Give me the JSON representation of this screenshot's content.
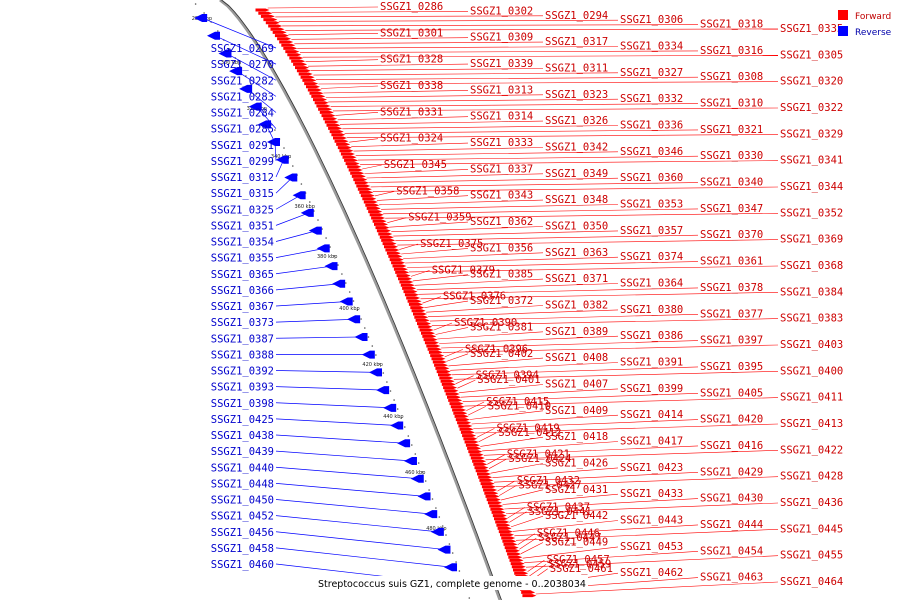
{
  "legend": {
    "items": [
      {
        "label": "Forward",
        "color": "#ff0000"
      },
      {
        "label": "Reverse",
        "color": "#0000ff"
      }
    ]
  },
  "caption": "Streptococcus suis GZ1, complete genome - 0..2038034",
  "colors": {
    "forward": "#ff0000",
    "reverse": "#0000ff",
    "backbone": "#888888"
  },
  "ticks": [
    "280 kbp",
    "300 kbp",
    "320 kbp",
    "340 kbp",
    "360 kbp",
    "380 kbp",
    "400 kbp",
    "420 kbp",
    "440 kbp",
    "460 kbp",
    "480 kbp"
  ],
  "reverse_genes": [
    "SSGZ1_0269",
    "SSGZ1_0270",
    "SSGZ1_0282",
    "SSGZ1_0283",
    "SSGZ1_0284",
    "SSGZ1_0285",
    "SSGZ1_0291",
    "SSGZ1_0299",
    "SSGZ1_0312",
    "SSGZ1_0315",
    "SSGZ1_0325",
    "SSGZ1_0351",
    "SSGZ1_0354",
    "SSGZ1_0355",
    "SSGZ1_0365",
    "SSGZ1_0366",
    "SSGZ1_0367",
    "SSGZ1_0373",
    "SSGZ1_0387",
    "SSGZ1_0388",
    "SSGZ1_0392",
    "SSGZ1_0393",
    "SSGZ1_0398",
    "SSGZ1_0425",
    "SSGZ1_0438",
    "SSGZ1_0439",
    "SSGZ1_0440",
    "SSGZ1_0448",
    "SSGZ1_0450",
    "SSGZ1_0452",
    "SSGZ1_0456",
    "SSGZ1_0458",
    "SSGZ1_0460"
  ],
  "forward_genes": [
    "SSGZ1_0286",
    "SSGZ1_0302",
    "SSGZ1_0294",
    "SSGZ1_0306",
    "SSGZ1_0318",
    "SSGZ1_0335",
    "SSGZ1_0301",
    "SSGZ1_0309",
    "SSGZ1_0317",
    "SSGZ1_0334",
    "SSGZ1_0316",
    "SSGZ1_0305",
    "SSGZ1_0328",
    "SSGZ1_0339",
    "SSGZ1_0311",
    "SSGZ1_0327",
    "SSGZ1_0308",
    "SSGZ1_0320",
    "SSGZ1_0338",
    "SSGZ1_0313",
    "SSGZ1_0323",
    "SSGZ1_0332",
    "SSGZ1_0310",
    "SSGZ1_0322",
    "SSGZ1_0331",
    "SSGZ1_0314",
    "SSGZ1_0326",
    "SSGZ1_0336",
    "SSGZ1_0321",
    "SSGZ1_0329",
    "SSGZ1_0324",
    "SSGZ1_0333",
    "SSGZ1_0342",
    "SSGZ1_0346",
    "SSGZ1_0330",
    "SSGZ1_0341",
    "SSGZ1_0345",
    "SSGZ1_0337",
    "SSGZ1_0349",
    "SSGZ1_0360",
    "SSGZ1_0340",
    "SSGZ1_0344",
    "SSGZ1_0358",
    "SSGZ1_0343",
    "SSGZ1_0348",
    "SSGZ1_0353",
    "SSGZ1_0347",
    "SSGZ1_0352",
    "SSGZ1_0359",
    "SSGZ1_0362",
    "SSGZ1_0350",
    "SSGZ1_0357",
    "SSGZ1_0370",
    "SSGZ1_0369",
    "SSGZ1_0375",
    "SSGZ1_0356",
    "SSGZ1_0363",
    "SSGZ1_0374",
    "SSGZ1_0361",
    "SSGZ1_0368",
    "SSGZ1_0379",
    "SSGZ1_0385",
    "SSGZ1_0371",
    "SSGZ1_0364",
    "SSGZ1_0378",
    "SSGZ1_0384",
    "SSGZ1_0376",
    "SSGZ1_0372",
    "SSGZ1_0382",
    "SSGZ1_0380",
    "SSGZ1_0377",
    "SSGZ1_0383",
    "SSGZ1_0390",
    "SSGZ1_0381",
    "SSGZ1_0389",
    "SSGZ1_0386",
    "SSGZ1_0397",
    "SSGZ1_0403",
    "SSGZ1_0396",
    "SSGZ1_0402",
    "SSGZ1_0408",
    "SSGZ1_0391",
    "SSGZ1_0395",
    "SSGZ1_0400",
    "SSGZ1_0394",
    "SSGZ1_0401",
    "SSGZ1_0407",
    "SSGZ1_0399",
    "SSGZ1_0405",
    "SSGZ1_0411",
    "SSGZ1_0415",
    "SSGZ1_0410",
    "SSGZ1_0409",
    "SSGZ1_0414",
    "SSGZ1_0420",
    "SSGZ1_0413",
    "SSGZ1_0419",
    "SSGZ1_0412",
    "SSGZ1_0418",
    "SSGZ1_0417",
    "SSGZ1_0416",
    "SSGZ1_0422",
    "SSGZ1_0421",
    "SSGZ1_0424",
    "SSGZ1_0426",
    "SSGZ1_0423",
    "SSGZ1_0429",
    "SSGZ1_0428",
    "SSGZ1_0432",
    "SSGZ1_0427",
    "SSGZ1_0431",
    "SSGZ1_0433",
    "SSGZ1_0430",
    "SSGZ1_0436",
    "SSGZ1_0437",
    "SSGZ1_0441",
    "SSGZ1_0442",
    "SSGZ1_0443",
    "SSGZ1_0444",
    "SSGZ1_0445",
    "SSGZ1_0446",
    "SSGZ1_0447",
    "SSGZ1_0449",
    "SSGZ1_0453",
    "SSGZ1_0454",
    "SSGZ1_0455",
    "SSGZ1_0457",
    "SSGZ1_0459",
    "SSGZ1_0461",
    "SSGZ1_0462",
    "SSGZ1_0463",
    "SSGZ1_0464"
  ]
}
